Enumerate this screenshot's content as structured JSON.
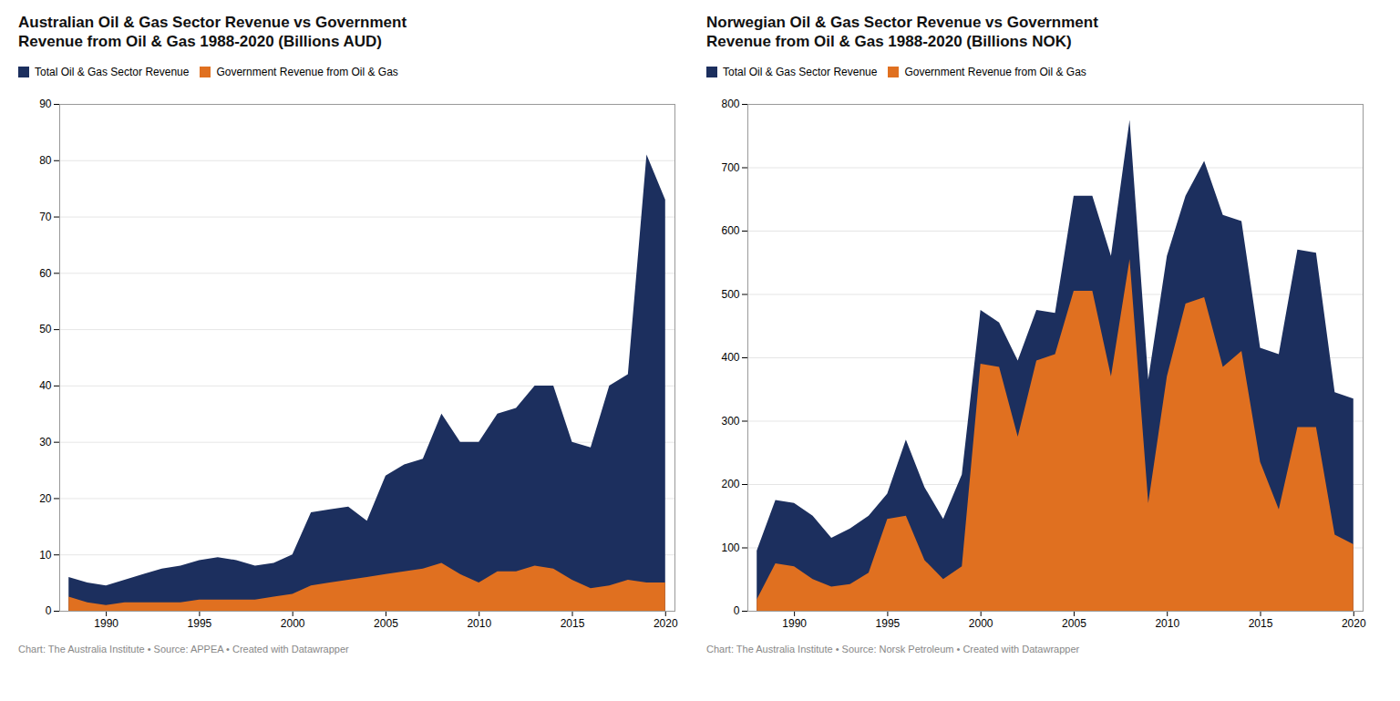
{
  "chart_data": [
    {
      "type": "area",
      "title": "Australian Oil & Gas Sector Revenue vs Government\nRevenue from Oil & Gas 1988-2020 (Billions AUD)",
      "annotations": [
        "Chart: The Australia Institute • Source: APPEA • Created with Datawrapper"
      ],
      "x": [
        1988,
        1989,
        1990,
        1991,
        1992,
        1993,
        1994,
        1995,
        1996,
        1997,
        1998,
        1999,
        2000,
        2001,
        2002,
        2003,
        2004,
        2005,
        2006,
        2007,
        2008,
        2009,
        2010,
        2011,
        2012,
        2013,
        2014,
        2015,
        2016,
        2017,
        2018,
        2019,
        2020
      ],
      "series": [
        {
          "name": "Total Oil & Gas Sector Revenue",
          "color": "#1c2f5e",
          "values": [
            6.0,
            5.0,
            4.5,
            5.5,
            6.5,
            7.5,
            8.0,
            9.0,
            9.5,
            9.0,
            8.0,
            8.5,
            10.0,
            17.5,
            18.0,
            18.5,
            16.0,
            24.0,
            26.0,
            27.0,
            35.0,
            30.0,
            30.0,
            35.0,
            36.0,
            40.0,
            40.0,
            30.0,
            29.0,
            40.0,
            42.0,
            81.0,
            73.0
          ]
        },
        {
          "name": "Government Revenue from Oil & Gas",
          "color": "#e07020",
          "values": [
            2.5,
            1.5,
            1.0,
            1.5,
            1.5,
            1.5,
            1.5,
            2.0,
            2.0,
            2.0,
            2.0,
            2.5,
            3.0,
            4.5,
            5.0,
            5.5,
            6.0,
            6.5,
            7.0,
            7.5,
            8.5,
            6.5,
            5.0,
            7.0,
            7.0,
            8.0,
            7.5,
            5.5,
            4.0,
            4.5,
            5.5,
            5.0,
            5.0
          ]
        }
      ],
      "xlim": [
        1987.5,
        2020.5
      ],
      "xticks": [
        1990,
        1995,
        2000,
        2005,
        2010,
        2015,
        2020
      ],
      "ylim": [
        0,
        90
      ],
      "yticks": [
        0,
        10,
        20,
        30,
        40,
        50,
        60,
        70,
        80,
        90
      ],
      "grid": "y",
      "legend": "upper left",
      "stacked": false
    },
    {
      "type": "area",
      "title": "Norwegian Oil & Gas Sector Revenue vs Government\nRevenue from Oil & Gas 1988-2020 (Billions NOK)",
      "annotations": [
        "Chart: The Australia Institute • Source: Norsk Petroleum • Created with Datawrapper"
      ],
      "x": [
        1988,
        1989,
        1990,
        1991,
        1992,
        1993,
        1994,
        1995,
        1996,
        1997,
        1998,
        1999,
        2000,
        2001,
        2002,
        2003,
        2004,
        2005,
        2006,
        2007,
        2008,
        2009,
        2010,
        2011,
        2012,
        2013,
        2014,
        2015,
        2016,
        2017,
        2018,
        2019,
        2020
      ],
      "series": [
        {
          "name": "Total Oil & Gas Sector Revenue",
          "color": "#1c2f5e",
          "values": [
            95,
            175,
            170,
            150,
            115,
            130,
            150,
            185,
            270,
            195,
            145,
            215,
            475,
            455,
            395,
            475,
            470,
            655,
            655,
            560,
            775,
            365,
            560,
            655,
            710,
            625,
            615,
            415,
            405,
            570,
            565,
            345,
            335
          ]
        },
        {
          "name": "Government Revenue from Oil & Gas",
          "color": "#e07020",
          "values": [
            18,
            75,
            70,
            50,
            38,
            42,
            60,
            145,
            150,
            80,
            50,
            70,
            390,
            385,
            275,
            395,
            405,
            505,
            505,
            370,
            555,
            170,
            370,
            485,
            495,
            385,
            410,
            235,
            160,
            290,
            290,
            120,
            105
          ]
        }
      ],
      "xlim": [
        1987.5,
        2020.5
      ],
      "xticks": [
        1990,
        1995,
        2000,
        2005,
        2010,
        2015,
        2020
      ],
      "ylim": [
        0,
        800
      ],
      "yticks": [
        0,
        100,
        200,
        300,
        400,
        500,
        600,
        700,
        800
      ],
      "grid": "y",
      "legend": "upper left",
      "stacked": false
    }
  ]
}
